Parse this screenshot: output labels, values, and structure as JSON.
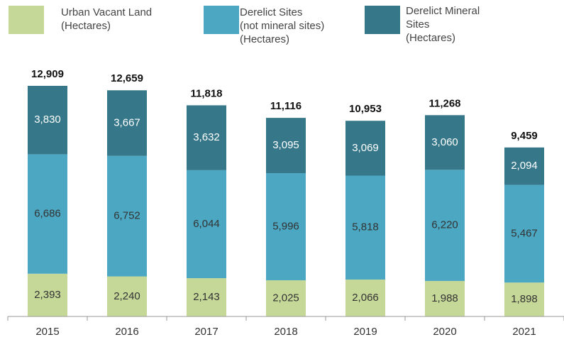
{
  "chart_data": {
    "type": "stacked_bar",
    "categories": [
      "2015",
      "2016",
      "2017",
      "2018",
      "2019",
      "2020",
      "2021"
    ],
    "series": [
      {
        "name": "Urban Vacant Land\n(Hectares)",
        "color": "#c5d898",
        "values": [
          2393,
          2240,
          2143,
          2025,
          2066,
          1988,
          1898
        ],
        "value_labels": [
          "2,393",
          "2,240",
          "2,143",
          "2,025",
          "2,066",
          "1,988",
          "1,898"
        ]
      },
      {
        "name": "Derelict Sites\n(not mineral sites)\n(Hectares)",
        "color": "#4ba7c2",
        "values": [
          6686,
          6752,
          6044,
          5996,
          5818,
          6220,
          5467
        ],
        "value_labels": [
          "6,686",
          "6,752",
          "6,044",
          "5,996",
          "5,818",
          "6,220",
          "5,467"
        ]
      },
      {
        "name": "Derelict Mineral\nSites\n(Hectares)",
        "color": "#36788a",
        "values": [
          3830,
          3667,
          3632,
          3095,
          3069,
          3060,
          2094
        ],
        "value_labels": [
          "3,830",
          "3,667",
          "3,632",
          "3,095",
          "3,069",
          "3,060",
          "2,094"
        ]
      }
    ],
    "totals": [
      12909,
      12659,
      11818,
      11116,
      10953,
      11268,
      9459
    ],
    "total_labels": [
      "12,909",
      "12,659",
      "11,818",
      "11,116",
      "10,953",
      "11,268",
      "9,459"
    ],
    "ylim": [
      0,
      14000
    ]
  }
}
